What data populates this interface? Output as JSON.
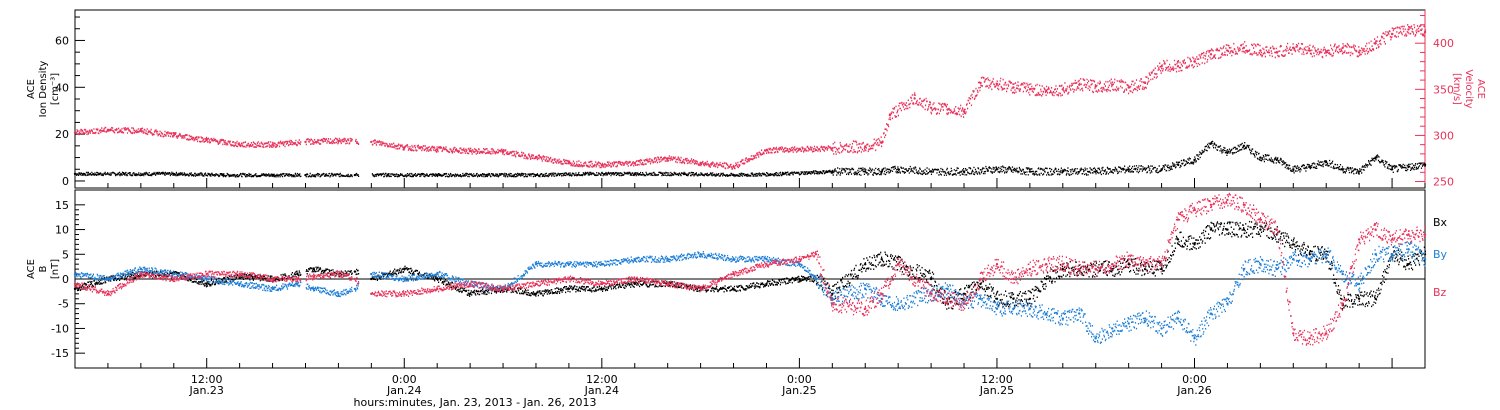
{
  "chart_data": [
    {
      "type": "scatter",
      "panel": "top",
      "ylabel_left": [
        "ACE",
        "Ion Density",
        "[cm⁻³]"
      ],
      "ylabel_right": [
        "ACE",
        "Velocity",
        "[km/s]"
      ],
      "ylim_left": [
        -3,
        73
      ],
      "yticks_left": [
        0,
        20,
        40,
        60
      ],
      "ylim_right": [
        243,
        436
      ],
      "yticks_right": [
        250,
        300,
        350,
        400
      ],
      "xlim_hours": [
        0,
        82
      ],
      "grid": false,
      "series": [
        {
          "axis": "left",
          "color": "#000000",
          "x": [
            0,
            3,
            6,
            9,
            12,
            14,
            17,
            19,
            22,
            25,
            28,
            31,
            34,
            37,
            40,
            43,
            46,
            48,
            49,
            50,
            52,
            54,
            56,
            58,
            60,
            62,
            64,
            66,
            67,
            68,
            69,
            70,
            71,
            72,
            73,
            74,
            75,
            76,
            77,
            78,
            79,
            80,
            81,
            82
          ],
          "y": [
            3,
            3,
            3,
            2.5,
            2.5,
            2.5,
            2.5,
            2.5,
            2.5,
            2.5,
            2.5,
            3,
            3,
            3,
            2.5,
            3,
            4,
            4,
            4,
            5,
            4,
            4,
            5,
            4,
            4,
            4,
            5,
            5,
            7,
            9,
            16,
            12,
            15,
            10,
            9,
            5,
            6,
            8,
            5,
            4,
            10,
            5,
            6,
            7
          ]
        },
        {
          "axis": "right",
          "color": "#e8325a",
          "x": [
            0,
            2,
            4,
            6,
            8,
            10,
            12,
            14,
            16,
            18,
            20,
            22,
            24,
            26,
            28,
            30,
            32,
            34,
            36,
            38,
            40,
            42,
            44,
            46,
            48,
            49,
            49.5,
            51,
            52,
            53,
            54,
            55,
            56,
            57,
            58,
            59,
            60,
            61,
            62,
            63,
            64,
            65,
            66,
            67,
            68,
            69,
            70,
            71,
            72,
            73,
            74,
            75,
            76,
            77,
            78,
            79,
            80,
            81,
            82
          ],
          "y": [
            303,
            306,
            305,
            300,
            295,
            290,
            290,
            293,
            294,
            293,
            287,
            285,
            283,
            282,
            276,
            270,
            268,
            270,
            275,
            270,
            266,
            284,
            285,
            286,
            288,
            292,
            322,
            340,
            330,
            328,
            326,
            357,
            356,
            352,
            350,
            348,
            350,
            355,
            353,
            355,
            352,
            357,
            375,
            375,
            380,
            388,
            392,
            395,
            392,
            390,
            395,
            392,
            390,
            395,
            390,
            400,
            410,
            415,
            412
          ]
        }
      ]
    },
    {
      "type": "line",
      "panel": "bottom",
      "ylabel": [
        "ACE",
        "B",
        "[nT]"
      ],
      "ylim": [
        -18,
        18
      ],
      "yticks": [
        -15,
        -10,
        -5,
        0,
        5,
        10,
        15
      ],
      "xlim_hours": [
        0,
        82
      ],
      "x_title": "hours:minutes, Jan. 23, 2013 - Jan. 26, 2013",
      "x_ticks": [
        {
          "hour": 8,
          "time": "12:00",
          "date": "Jan.23"
        },
        {
          "hour": 20,
          "time": "0:00",
          "date": "Jan.24"
        },
        {
          "hour": 32,
          "time": "12:00",
          "date": "Jan.24"
        },
        {
          "hour": 44,
          "time": "0:00",
          "date": "Jan.25"
        },
        {
          "hour": 56,
          "time": "12:00",
          "date": "Jan.25"
        },
        {
          "hour": 68,
          "time": "0:00",
          "date": "Jan.26"
        }
      ],
      "zero_line": true,
      "grid": false,
      "series": [
        {
          "label": "Bx",
          "color": "#000000",
          "x": [
            0,
            2,
            4,
            6,
            8,
            10,
            12,
            13.5,
            14.5,
            16,
            17,
            18,
            20,
            22,
            24,
            26,
            28,
            30,
            32,
            34,
            36,
            38,
            40,
            42,
            44,
            45,
            46,
            48,
            49,
            50,
            52,
            53,
            54,
            55,
            56,
            57,
            58,
            59,
            60,
            61,
            62,
            63,
            64,
            65,
            66,
            67,
            68,
            69,
            70,
            71,
            72,
            73,
            74,
            75,
            76,
            77,
            78,
            79,
            80,
            81,
            82
          ],
          "y": [
            -2,
            0,
            1,
            1,
            -1,
            0.5,
            0,
            1,
            2,
            1,
            1.5,
            0,
            2,
            0,
            -3,
            -2,
            -3,
            -2,
            -2,
            -1,
            -1,
            -2,
            -2,
            -1,
            0,
            0,
            -3,
            3,
            4,
            3,
            0,
            -5,
            -3,
            -1,
            -4,
            -4,
            -4,
            0,
            2,
            2,
            2,
            2,
            3,
            2,
            2,
            8,
            7,
            10,
            10,
            10,
            10,
            9,
            7,
            5,
            5,
            -5,
            -4,
            -4,
            5,
            3,
            5
          ]
        },
        {
          "label": "By",
          "color": "#1e7fd8",
          "x": [
            0,
            2,
            4,
            6,
            8,
            10,
            12,
            13.5,
            14.5,
            16,
            17,
            18,
            20,
            22,
            24,
            26,
            28,
            30,
            32,
            34,
            36,
            38,
            40,
            42,
            44,
            45,
            46,
            48,
            49,
            50,
            52,
            53,
            54,
            55,
            56,
            57,
            58,
            59,
            60,
            61,
            62,
            63,
            64,
            65,
            66,
            67,
            68,
            69,
            70,
            71,
            72,
            73,
            74,
            75,
            76,
            77,
            78,
            79,
            80,
            81,
            82
          ],
          "y": [
            1,
            0,
            2,
            1,
            0,
            -1,
            -2,
            -1,
            -2,
            -3,
            -2,
            1,
            0,
            1,
            -1,
            -2,
            3,
            3,
            3,
            4,
            4,
            5,
            4,
            4,
            3,
            0,
            -4,
            -2,
            -4,
            -5,
            -3,
            -2,
            -5,
            -4,
            -6,
            -6,
            -6,
            -7,
            -8,
            -7,
            -12,
            -10,
            -9,
            -8,
            -10,
            -8,
            -12,
            -7,
            -5,
            2,
            3,
            2,
            4,
            4,
            5,
            1,
            -1,
            5,
            5,
            6,
            4
          ]
        },
        {
          "label": "Bz",
          "color": "#e8325a",
          "x": [
            0,
            2,
            4,
            6,
            8,
            10,
            12,
            13.5,
            14.5,
            16,
            17,
            18,
            20,
            22,
            24,
            26,
            28,
            30,
            32,
            34,
            36,
            38,
            40,
            42,
            44,
            45,
            46,
            48,
            49,
            50,
            52,
            53,
            54,
            55,
            56,
            57,
            58,
            59,
            60,
            61,
            62,
            63,
            64,
            65,
            66,
            67,
            68,
            69,
            70,
            71,
            72,
            73,
            74,
            75,
            76,
            77,
            78,
            79,
            80,
            81,
            82
          ],
          "y": [
            -1,
            -3,
            1,
            0,
            1,
            1,
            0,
            0,
            0.5,
            1,
            0,
            -3,
            -3,
            -2,
            -1,
            -2,
            -1,
            0,
            -1,
            0,
            -1,
            -2,
            1,
            3,
            4,
            5,
            -5,
            -6,
            -3,
            3,
            -3,
            -4,
            -5,
            0,
            3,
            0,
            2,
            3,
            3,
            2,
            2,
            3,
            4,
            3,
            3,
            12,
            14,
            15,
            16,
            15,
            12,
            10,
            -11,
            -12,
            -11,
            -5,
            8,
            10,
            8,
            9,
            9
          ]
        }
      ]
    }
  ]
}
